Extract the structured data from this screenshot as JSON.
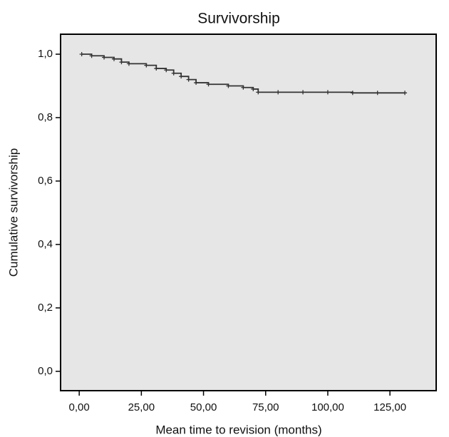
{
  "chart_data": {
    "type": "line",
    "step": true,
    "title": "Survivorship",
    "x_label": "Mean time to revision (months)",
    "y_label": "Cumulative survivorship",
    "x": [
      1,
      5,
      10,
      14,
      17,
      20,
      27,
      31,
      35,
      38,
      41,
      44,
      47,
      52,
      60,
      66,
      70,
      72,
      80,
      90,
      100,
      110,
      120,
      131
    ],
    "values": [
      1.0,
      0.995,
      0.99,
      0.985,
      0.975,
      0.97,
      0.965,
      0.955,
      0.95,
      0.94,
      0.93,
      0.92,
      0.91,
      0.905,
      0.9,
      0.895,
      0.89,
      0.88,
      0.88,
      0.88,
      0.88,
      0.878,
      0.878,
      0.878
    ],
    "color": "#333333",
    "background": "#e6e6e6",
    "xlim": [
      -7.5,
      143.6
    ],
    "xticks": [
      {
        "value": 0,
        "label": "0,00"
      },
      {
        "value": 25,
        "label": "25,00"
      },
      {
        "value": 50,
        "label": "50,00"
      },
      {
        "value": 75,
        "label": "75,00"
      },
      {
        "value": 100,
        "label": "100,00"
      },
      {
        "value": 125,
        "label": "125,00"
      }
    ],
    "ylim": [
      -0.061,
      1.063
    ],
    "yticks": [
      {
        "value": 0,
        "label": "0,0"
      },
      {
        "value": 0.2,
        "label": "0,2"
      },
      {
        "value": 0.4,
        "label": "0,4"
      },
      {
        "value": 0.6,
        "label": "0,6"
      },
      {
        "value": 0.8,
        "label": "0,8"
      },
      {
        "value": 1.0,
        "label": "1,0"
      }
    ]
  }
}
